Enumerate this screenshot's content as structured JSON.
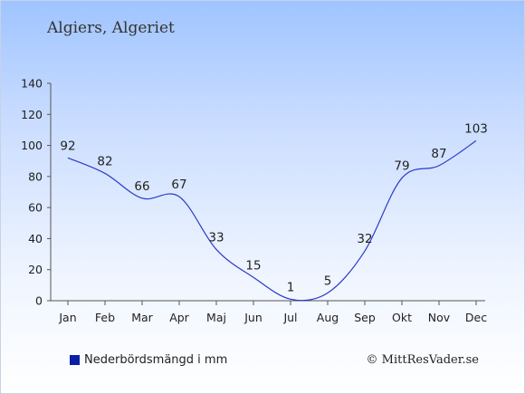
{
  "page": {
    "title": "Algiers, Algeriet",
    "legend_label": "Nederbördsmängd i mm",
    "credit": "© MittResVader.se"
  },
  "colors": {
    "line": "#2a3cc8",
    "legend_swatch": "#0a1fa5",
    "axis": "#555555",
    "text": "#222222"
  },
  "chart_data": {
    "type": "line",
    "title": "Algiers, Algeriet",
    "xlabel": "",
    "ylabel": "",
    "categories": [
      "Jan",
      "Feb",
      "Mar",
      "Apr",
      "Maj",
      "Jun",
      "Jul",
      "Aug",
      "Sep",
      "Okt",
      "Nov",
      "Dec"
    ],
    "series": [
      {
        "name": "Nederbördsmängd i mm",
        "values": [
          92,
          82,
          66,
          67,
          33,
          15,
          1,
          5,
          32,
          79,
          87,
          103
        ]
      }
    ],
    "ylim": [
      0,
      140
    ],
    "yticks": [
      0,
      20,
      40,
      60,
      80,
      100,
      120,
      140
    ],
    "grid": false,
    "legend_position": "bottom-left",
    "data_labels": true
  }
}
